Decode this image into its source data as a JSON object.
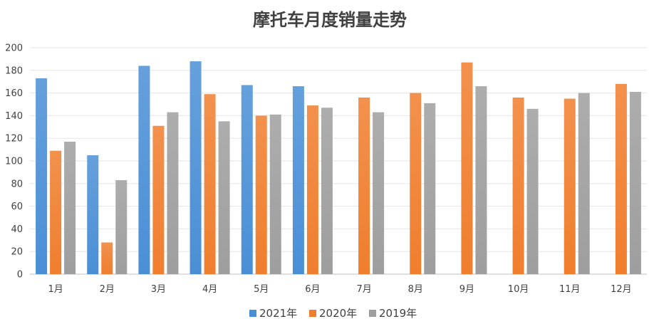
{
  "chart_data": {
    "type": "bar",
    "title": "摩托车月度销量走势",
    "xlabel": "",
    "ylabel": "",
    "ylim": [
      0,
      200
    ],
    "yticks": [
      0,
      20,
      40,
      60,
      80,
      100,
      120,
      140,
      160,
      180,
      200
    ],
    "grid": true,
    "legend_position": "bottom",
    "categories": [
      "1月",
      "2月",
      "3月",
      "4月",
      "5月",
      "6月",
      "7月",
      "8月",
      "9月",
      "10月",
      "11月",
      "12月"
    ],
    "series": [
      {
        "name": "2021年",
        "color": "#4a8fd6",
        "values": [
          173,
          105,
          184,
          188,
          167,
          166,
          null,
          null,
          null,
          null,
          null,
          null
        ]
      },
      {
        "name": "2020年",
        "color": "#f07e2e",
        "values": [
          109,
          28,
          131,
          159,
          140,
          149,
          156,
          160,
          187,
          156,
          155,
          168
        ]
      },
      {
        "name": "2019年",
        "color": "#9e9e9e",
        "values": [
          117,
          83,
          143,
          135,
          141,
          147,
          143,
          151,
          166,
          146,
          160,
          161
        ]
      }
    ]
  }
}
